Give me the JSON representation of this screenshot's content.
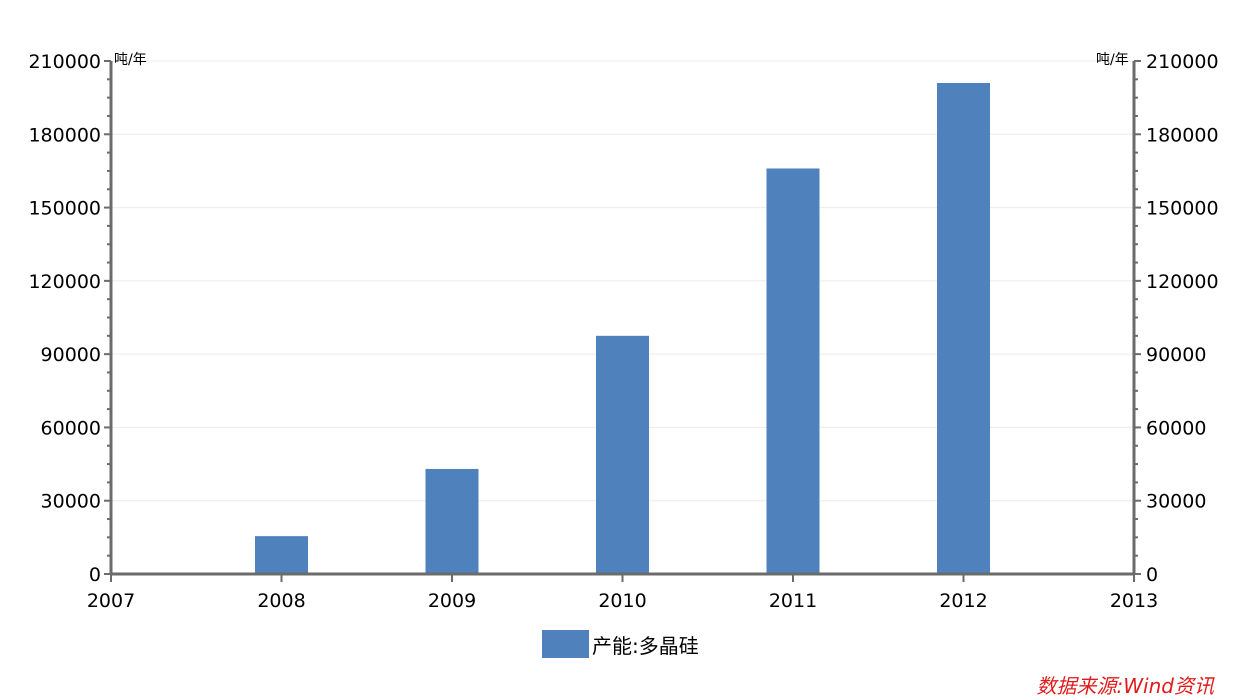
{
  "chart_data": {
    "type": "bar",
    "categories": [
      "2008",
      "2009",
      "2010",
      "2011",
      "2012"
    ],
    "x_ticks": [
      "2007",
      "2008",
      "2009",
      "2010",
      "2011",
      "2012",
      "2013"
    ],
    "series": [
      {
        "name": "产能:多晶硅",
        "values": [
          15500,
          43000,
          97500,
          166000,
          201000
        ],
        "color": "#4f81bd"
      }
    ],
    "ylim": [
      0,
      210000
    ],
    "y_ticks": [
      "0",
      "30000",
      "60000",
      "90000",
      "120000",
      "150000",
      "180000",
      "210000"
    ],
    "y_unit_left": "吨/年",
    "y_unit_right": "吨/年",
    "dual_y_axis": true,
    "grid": true,
    "legend_position": "bottom-center",
    "source": "数据来源:Wind资讯"
  }
}
